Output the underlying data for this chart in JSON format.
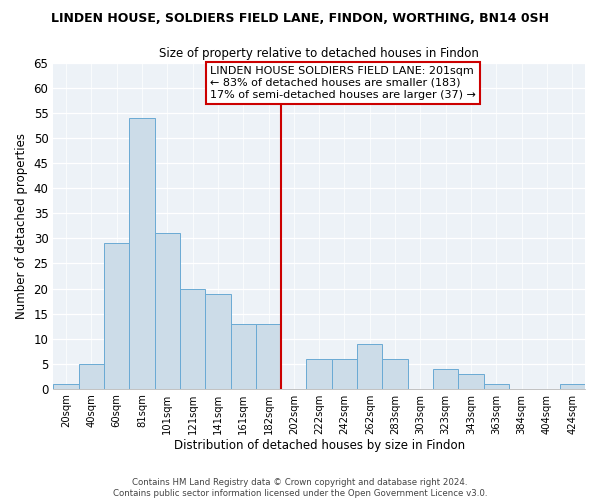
{
  "title": "LINDEN HOUSE, SOLDIERS FIELD LANE, FINDON, WORTHING, BN14 0SH",
  "subtitle": "Size of property relative to detached houses in Findon",
  "xlabel": "Distribution of detached houses by size in Findon",
  "ylabel": "Number of detached properties",
  "bar_color": "#ccdce8",
  "bar_edge_color": "#6aaad4",
  "bin_labels": [
    "20sqm",
    "40sqm",
    "60sqm",
    "81sqm",
    "101sqm",
    "121sqm",
    "141sqm",
    "161sqm",
    "182sqm",
    "202sqm",
    "222sqm",
    "242sqm",
    "262sqm",
    "283sqm",
    "303sqm",
    "323sqm",
    "343sqm",
    "363sqm",
    "384sqm",
    "404sqm",
    "424sqm"
  ],
  "bar_heights": [
    1,
    5,
    29,
    54,
    31,
    20,
    19,
    13,
    13,
    0,
    6,
    6,
    9,
    6,
    0,
    4,
    3,
    1,
    0,
    0,
    1
  ],
  "ylim": [
    0,
    65
  ],
  "yticks": [
    0,
    5,
    10,
    15,
    20,
    25,
    30,
    35,
    40,
    45,
    50,
    55,
    60,
    65
  ],
  "vline_x": 8.5,
  "vline_color": "#cc0000",
  "annotation_title": "LINDEN HOUSE SOLDIERS FIELD LANE: 201sqm",
  "annotation_line1": "← 83% of detached houses are smaller (183)",
  "annotation_line2": "17% of semi-detached houses are larger (37) →",
  "annotation_box_color": "#cc0000",
  "footer1": "Contains HM Land Registry data © Crown copyright and database right 2024.",
  "footer2": "Contains public sector information licensed under the Open Government Licence v3.0.",
  "bg_color": "#edf2f7",
  "grid_color": "#ffffff",
  "spine_color": "#aaaaaa"
}
